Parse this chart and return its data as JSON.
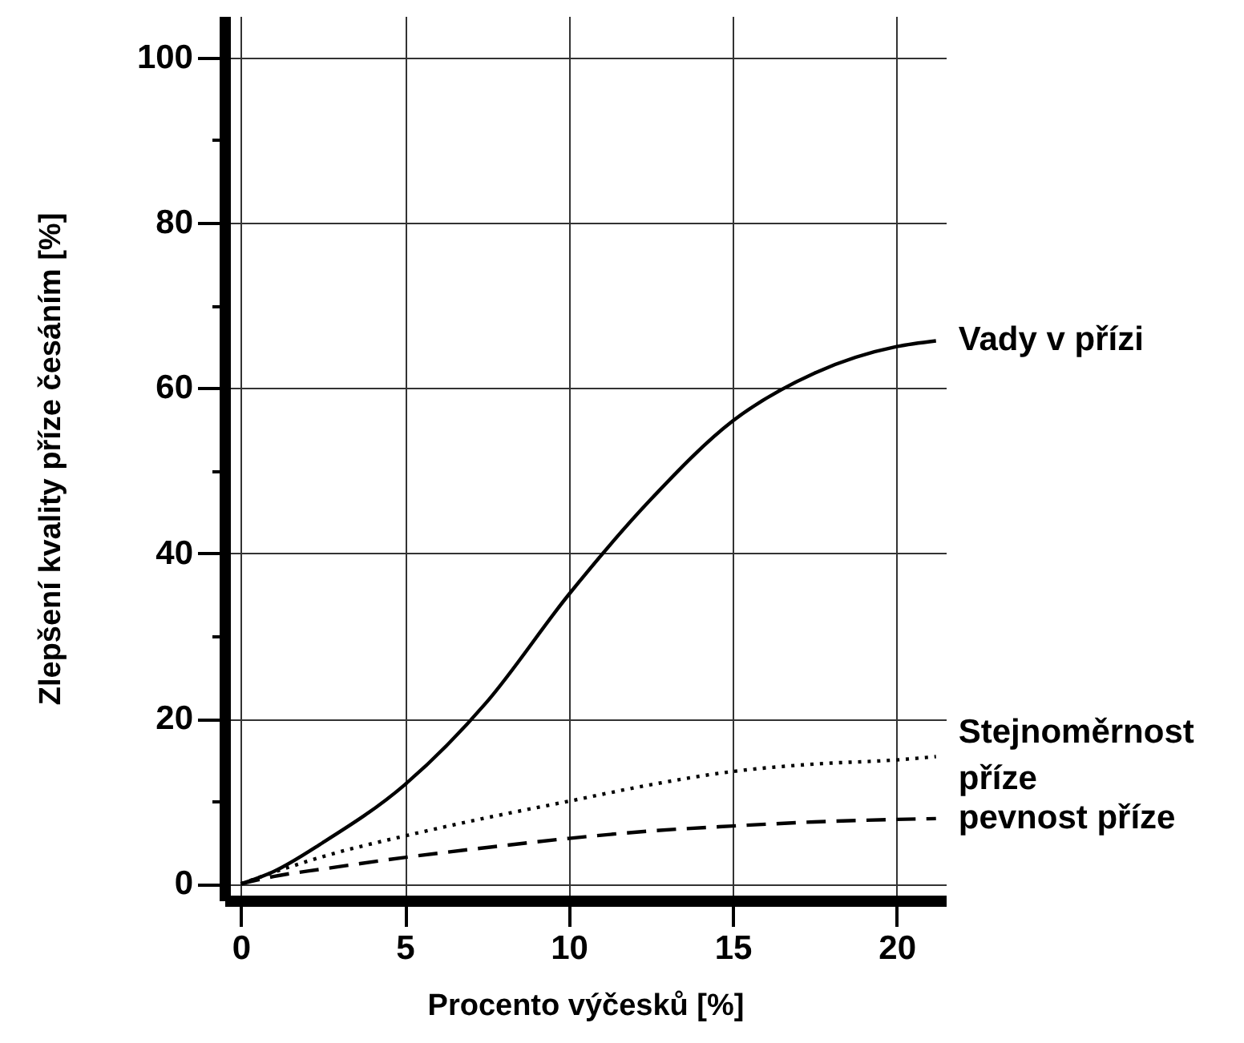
{
  "chart_data": {
    "type": "line",
    "xlabel": "Procento výčesků [%]",
    "ylabel": "Zlepšení kvality příze česáním [%]",
    "x": [
      0,
      1,
      2.5,
      5,
      7.5,
      10,
      12.5,
      15,
      17.5,
      20,
      21.2
    ],
    "series": [
      {
        "name": "Vady v přízi",
        "color": "#000000",
        "line_style": "solid",
        "values": [
          0,
          1.5,
          5,
          12,
          22,
          35,
          46.5,
          56,
          61.8,
          65,
          65.7
        ]
      },
      {
        "name": "Stejnoměrnost příze",
        "color": "#000000",
        "line_style": "dotted",
        "values": [
          0,
          1.4,
          3.3,
          5.8,
          8,
          10,
          12,
          13.6,
          14.5,
          15,
          15.4
        ]
      },
      {
        "name": "pevnost příze",
        "color": "#000000",
        "line_style": "dashed",
        "values": [
          0,
          0.9,
          1.8,
          3.2,
          4.4,
          5.5,
          6.4,
          7,
          7.5,
          7.8,
          7.9
        ]
      }
    ],
    "xlim": [
      -0.5,
      21.5
    ],
    "ylim": [
      -2,
      105
    ],
    "xticks": [
      0,
      5,
      10,
      15,
      20
    ],
    "yticks": [
      0,
      {
        "value": 10,
        "label": null
      },
      20,
      {
        "value": 30,
        "label": null
      },
      40,
      {
        "value": 50,
        "label": null
      },
      60,
      {
        "value": 70,
        "label": null
      },
      80,
      {
        "value": 90,
        "label": null
      },
      100
    ],
    "grid": true,
    "legend": false
  }
}
